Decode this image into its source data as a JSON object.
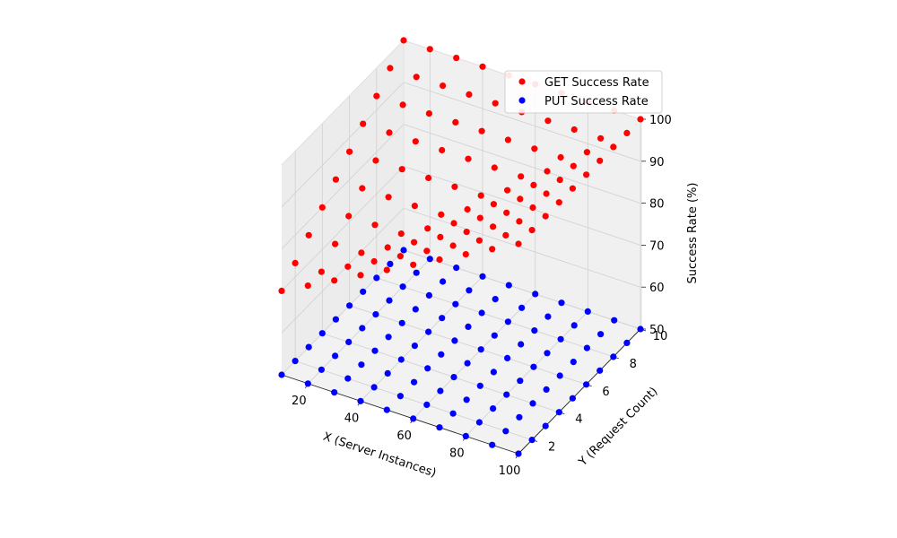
{
  "chart_data": {
    "type": "scatter",
    "projection": "3d",
    "title": "",
    "xlabel": "X (Server Instances)",
    "ylabel": "Y (Request Count)",
    "zlabel": "Success Rate (%)",
    "xlim": [
      10,
      100
    ],
    "ylim": [
      1,
      10
    ],
    "zlim": [
      50,
      100
    ],
    "x_ticks": [
      20,
      40,
      60,
      80,
      100
    ],
    "y_ticks": [
      2,
      4,
      6,
      8,
      10
    ],
    "z_ticks": [
      50,
      60,
      70,
      80,
      90,
      100
    ],
    "grid": true,
    "legend_position": "upper right",
    "x": [
      10,
      20,
      30,
      40,
      50,
      60,
      70,
      80,
      90,
      100
    ],
    "y": [
      1,
      2,
      3,
      4,
      5,
      6,
      7,
      8,
      9,
      10
    ],
    "series": [
      {
        "name": "GET Success Rate",
        "color": "#ff0000",
        "z_min": 70,
        "z_max": 100,
        "pattern": "increases with X and Y; all points on a 10x10 grid"
      },
      {
        "name": "PUT Success Rate",
        "color": "#0000ff",
        "z": 50,
        "pattern": "constant 50 for all X, Y on a 10x10 grid"
      }
    ]
  }
}
